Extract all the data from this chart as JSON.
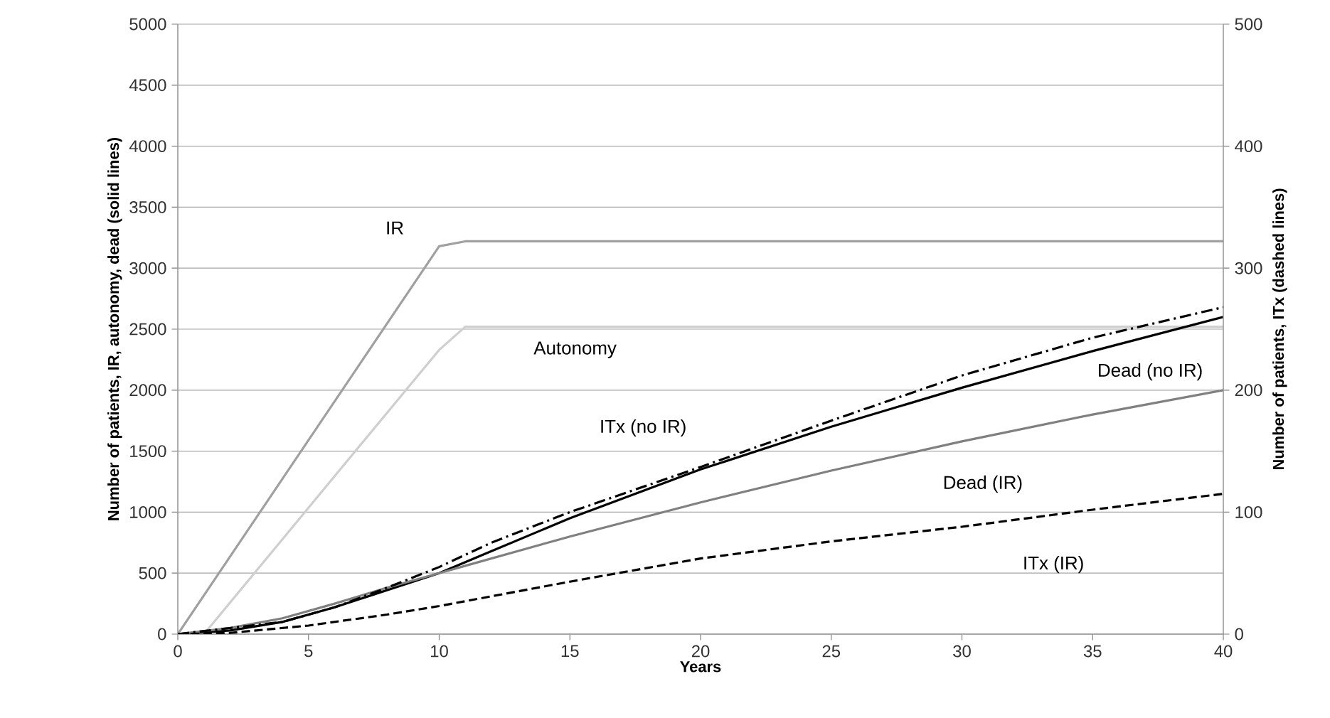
{
  "chart_data": {
    "type": "line",
    "xlabel": "Years",
    "ylabel": "Number of patients, IR, autonomy, dead  (solid lines)",
    "y2label": "Number of patients, ITx (dashed lines)",
    "xlim": [
      0,
      40
    ],
    "xticks": [
      0,
      5,
      10,
      15,
      20,
      25,
      30,
      35,
      40
    ],
    "ylim": [
      0,
      5000
    ],
    "yticks": [
      0,
      500,
      1000,
      1500,
      2000,
      2500,
      3000,
      3500,
      4000,
      4500,
      5000
    ],
    "y2lim": [
      0,
      500
    ],
    "y2ticks": [
      0,
      100,
      200,
      300,
      400,
      500
    ],
    "grid": "y",
    "legend": false,
    "marker": "none",
    "series": [
      {
        "name": "IR",
        "color": "#a0a0a0",
        "line_style": "solid",
        "x": [
          0,
          10,
          11,
          40
        ],
        "values": [
          0,
          3180,
          3220,
          3220
        ]
      },
      {
        "name": "Autonomy",
        "color": "#cfcfcf",
        "line_style": "solid",
        "x": [
          0,
          1,
          10,
          11,
          40
        ],
        "values": [
          0,
          0,
          2330,
          2520,
          2520
        ]
      },
      {
        "name": "Dead (no IR)",
        "color": "#000000",
        "line_style": "solid",
        "x": [
          0,
          2,
          4,
          6,
          8,
          10,
          12,
          15,
          20,
          25,
          30,
          35,
          40
        ],
        "values": [
          0,
          30,
          100,
          220,
          360,
          500,
          680,
          950,
          1350,
          1700,
          2020,
          2320,
          2600
        ]
      },
      {
        "name": "Dead (IR)",
        "color": "#808080",
        "line_style": "solid",
        "x": [
          0,
          2,
          4,
          6,
          8,
          10,
          11,
          15,
          20,
          25,
          30,
          35,
          40
        ],
        "values": [
          0,
          50,
          130,
          250,
          380,
          500,
          560,
          800,
          1080,
          1340,
          1580,
          1800,
          2000
        ]
      },
      {
        "name": "ITx (no IR)",
        "color": "#000000",
        "line_style": "dashdot",
        "axis": "y2",
        "x": [
          0,
          4,
          6,
          8,
          10,
          12,
          15,
          20,
          25,
          30,
          35,
          40
        ],
        "values": [
          0,
          10,
          22,
          38,
          55,
          75,
          100,
          137,
          175,
          212,
          243,
          268
        ]
      },
      {
        "name": "ITx (IR)",
        "color": "#000000",
        "line_style": "dashed",
        "axis": "y2",
        "x": [
          0,
          2,
          5,
          8,
          10,
          15,
          20,
          25,
          30,
          35,
          40
        ],
        "values": [
          0,
          1,
          7,
          16,
          23,
          43,
          62,
          76,
          88,
          102,
          115
        ]
      }
    ]
  }
}
